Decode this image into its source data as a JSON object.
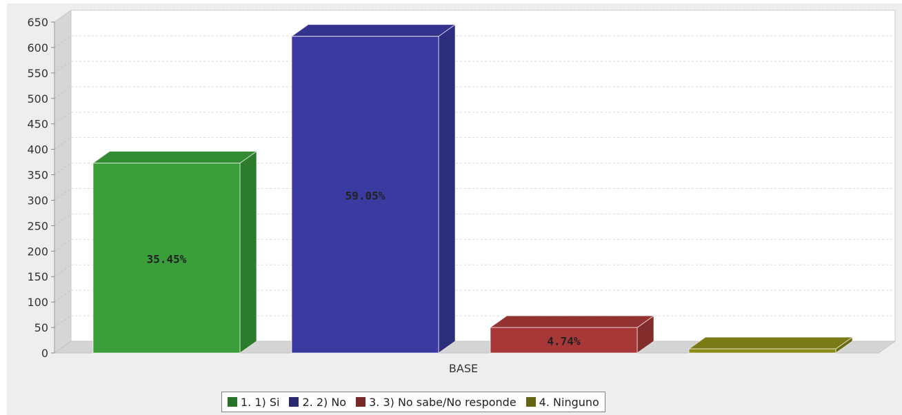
{
  "chart_data": {
    "type": "bar",
    "title": "",
    "xlabel": "",
    "ylabel": "",
    "categories": [
      "BASE"
    ],
    "ylim": [
      0,
      650
    ],
    "yticks": [
      0,
      50,
      100,
      150,
      200,
      250,
      300,
      350,
      400,
      450,
      500,
      550,
      600,
      650
    ],
    "grid": true,
    "legend_position": "bottom",
    "series": [
      {
        "name": "1. 1) Si",
        "values": [
          373
        ],
        "label": "35.45%",
        "color": "#3a9e3a"
      },
      {
        "name": "2. 2) No",
        "values": [
          622
        ],
        "label": "59.05%",
        "color": "#3a3aa0"
      },
      {
        "name": "3. 3) No sabe/No responde",
        "values": [
          50
        ],
        "label": "4.74%",
        "color": "#a83838"
      },
      {
        "name": "4. Ninguno",
        "values": [
          8
        ],
        "label": "",
        "color": "#8b8b1a"
      }
    ]
  }
}
